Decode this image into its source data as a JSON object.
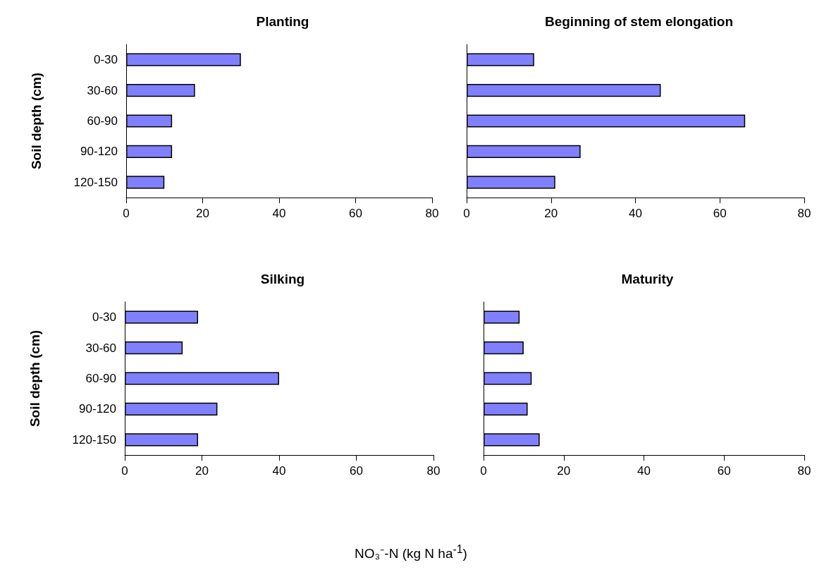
{
  "chart_data": [
    {
      "type": "bar",
      "orientation": "horizontal",
      "title": "Planting",
      "ylabel": "Soil depth (cm)",
      "categories": [
        "0-30",
        "30-60",
        "60-90",
        "90-120",
        "120-150"
      ],
      "values": [
        30,
        18,
        12,
        12,
        10
      ],
      "color": "#8080ff",
      "xlim": [
        0,
        80
      ],
      "xticks": [
        0,
        20,
        40,
        60,
        80
      ],
      "grid": false
    },
    {
      "type": "bar",
      "orientation": "horizontal",
      "title": "Beginning of stem elongation",
      "categories": [
        null,
        null,
        null,
        null,
        null
      ],
      "values": [
        16,
        46,
        66,
        27,
        21
      ],
      "color": "#8080ff",
      "xlim": [
        0,
        80
      ],
      "xticks": [
        0,
        20,
        40,
        60,
        80
      ],
      "grid": false
    },
    {
      "type": "bar",
      "orientation": "horizontal",
      "title": "Silking",
      "ylabel": "Soil depth (cm)",
      "categories": [
        "0-30",
        "30-60",
        "60-90",
        "90-120",
        "120-150"
      ],
      "values": [
        19,
        15,
        40,
        24,
        19
      ],
      "color": "#8080ff",
      "xlim": [
        0,
        80
      ],
      "xticks": [
        0,
        20,
        40,
        60,
        80
      ],
      "grid": false
    },
    {
      "type": "bar",
      "orientation": "horizontal",
      "title": "Maturity",
      "xlabel": "NO₃⁻-N (kg N ha$^{-1}$)",
      "categories": [
        null,
        null,
        null,
        null,
        null
      ],
      "values": [
        9,
        10,
        12,
        11,
        14
      ],
      "color": "#8080ff",
      "xlim": [
        0,
        80
      ],
      "xticks": [
        0,
        20,
        40,
        60,
        80
      ],
      "grid": false
    }
  ]
}
